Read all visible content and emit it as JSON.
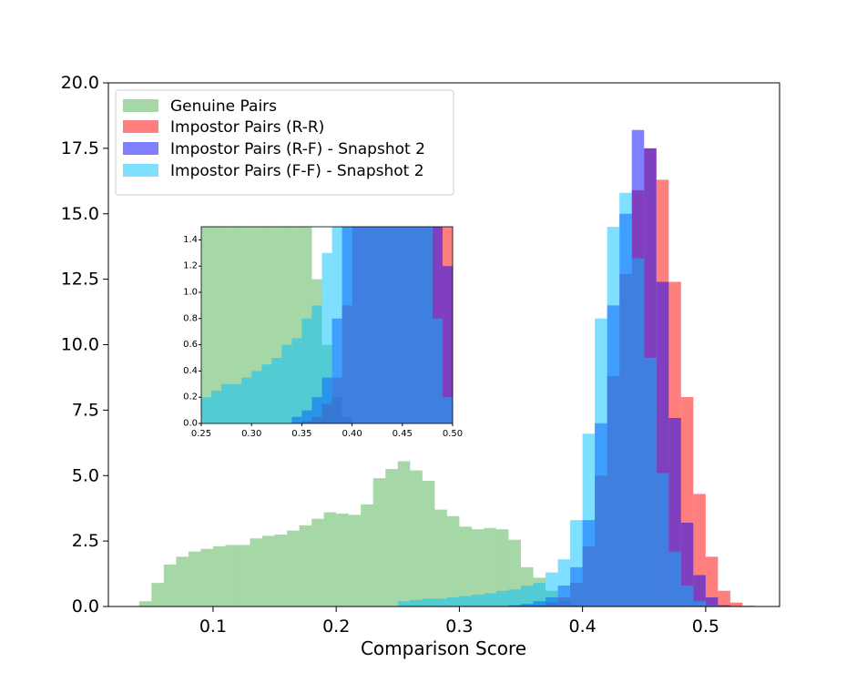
{
  "chart_data": {
    "type": "histogram",
    "title": "",
    "xlabel": "Comparison Score",
    "ylabel": "",
    "xlim": [
      0.015,
      0.56
    ],
    "ylim": [
      0,
      20
    ],
    "x_ticks": [
      "0.1",
      "0.2",
      "0.3",
      "0.4",
      "0.5"
    ],
    "y_ticks": [
      "0.0",
      "2.5",
      "5.0",
      "7.5",
      "10.0",
      "12.5",
      "15.0",
      "17.5",
      "20.0"
    ],
    "legend_position": "upper-left",
    "grid": false,
    "bin_width": 0.01,
    "series": [
      {
        "name": "Genuine Pairs",
        "color": "#2ca02c",
        "alpha": 0.42,
        "bins_start": [
          0.04,
          0.05,
          0.06,
          0.07,
          0.08,
          0.09,
          0.1,
          0.11,
          0.12,
          0.13,
          0.14,
          0.15,
          0.16,
          0.17,
          0.18,
          0.19,
          0.2,
          0.21,
          0.22,
          0.23,
          0.24,
          0.25,
          0.26,
          0.27,
          0.28,
          0.29,
          0.3,
          0.31,
          0.32,
          0.33,
          0.34,
          0.35,
          0.36,
          0.37,
          0.38,
          0.39
        ],
        "values": [
          0.2,
          0.9,
          1.6,
          1.9,
          2.1,
          2.2,
          2.3,
          2.35,
          2.35,
          2.6,
          2.7,
          2.75,
          2.9,
          3.1,
          3.35,
          3.6,
          3.55,
          3.5,
          3.9,
          4.9,
          5.25,
          5.55,
          5.2,
          4.8,
          3.7,
          3.45,
          3.05,
          2.95,
          3.0,
          2.95,
          2.55,
          1.5,
          1.1,
          0.6,
          0.2,
          0.05
        ]
      },
      {
        "name": "Impostor Pairs (R-R)",
        "color": "#ff0000",
        "alpha": 0.5,
        "bins_start": [
          0.35,
          0.36,
          0.37,
          0.38,
          0.39,
          0.4,
          0.41,
          0.42,
          0.43,
          0.44,
          0.45,
          0.46,
          0.47,
          0.48,
          0.49,
          0.5,
          0.51,
          0.52,
          0.53
        ],
        "values": [
          0.02,
          0.05,
          0.15,
          0.35,
          0.9,
          2.3,
          5.0,
          8.8,
          12.7,
          15.9,
          17.5,
          16.3,
          12.4,
          8.0,
          4.3,
          1.9,
          0.6,
          0.15,
          0.03
        ]
      },
      {
        "name": "Impostor Pairs (R-F) - Snapshot 2",
        "color": "#0000ff",
        "alpha": 0.5,
        "bins_start": [
          0.34,
          0.35,
          0.36,
          0.37,
          0.38,
          0.39,
          0.4,
          0.41,
          0.42,
          0.43,
          0.44,
          0.45,
          0.46,
          0.47,
          0.48,
          0.49,
          0.5,
          0.51
        ],
        "values": [
          0.05,
          0.1,
          0.2,
          0.35,
          0.8,
          1.5,
          3.3,
          7.0,
          11.5,
          15.0,
          18.2,
          17.5,
          12.4,
          7.2,
          3.2,
          1.2,
          0.35,
          0.05
        ]
      },
      {
        "name": "Impostor Pairs (F-F) - Snapshot 2",
        "color": "#00bfff",
        "alpha": 0.5,
        "bins_start": [
          0.25,
          0.26,
          0.27,
          0.28,
          0.29,
          0.3,
          0.31,
          0.32,
          0.33,
          0.34,
          0.35,
          0.36,
          0.37,
          0.38,
          0.39,
          0.4,
          0.41,
          0.42,
          0.43,
          0.44,
          0.45,
          0.46,
          0.47,
          0.48,
          0.49,
          0.5
        ],
        "values": [
          0.2,
          0.25,
          0.3,
          0.3,
          0.35,
          0.4,
          0.45,
          0.5,
          0.6,
          0.65,
          0.8,
          0.9,
          1.3,
          1.8,
          3.3,
          6.6,
          11.0,
          14.5,
          15.8,
          13.3,
          9.5,
          5.1,
          2.1,
          0.8,
          0.2,
          0.05
        ]
      }
    ],
    "inset": {
      "xlim": [
        0.25,
        0.5
      ],
      "ylim": [
        0,
        1.5
      ],
      "x_ticks": [
        "0.25",
        "0.30",
        "0.35",
        "0.40",
        "0.45",
        "0.50"
      ],
      "y_ticks": [
        "0.0",
        "0.2",
        "0.4",
        "0.6",
        "0.8",
        "1.0",
        "1.2",
        "1.4"
      ]
    }
  }
}
